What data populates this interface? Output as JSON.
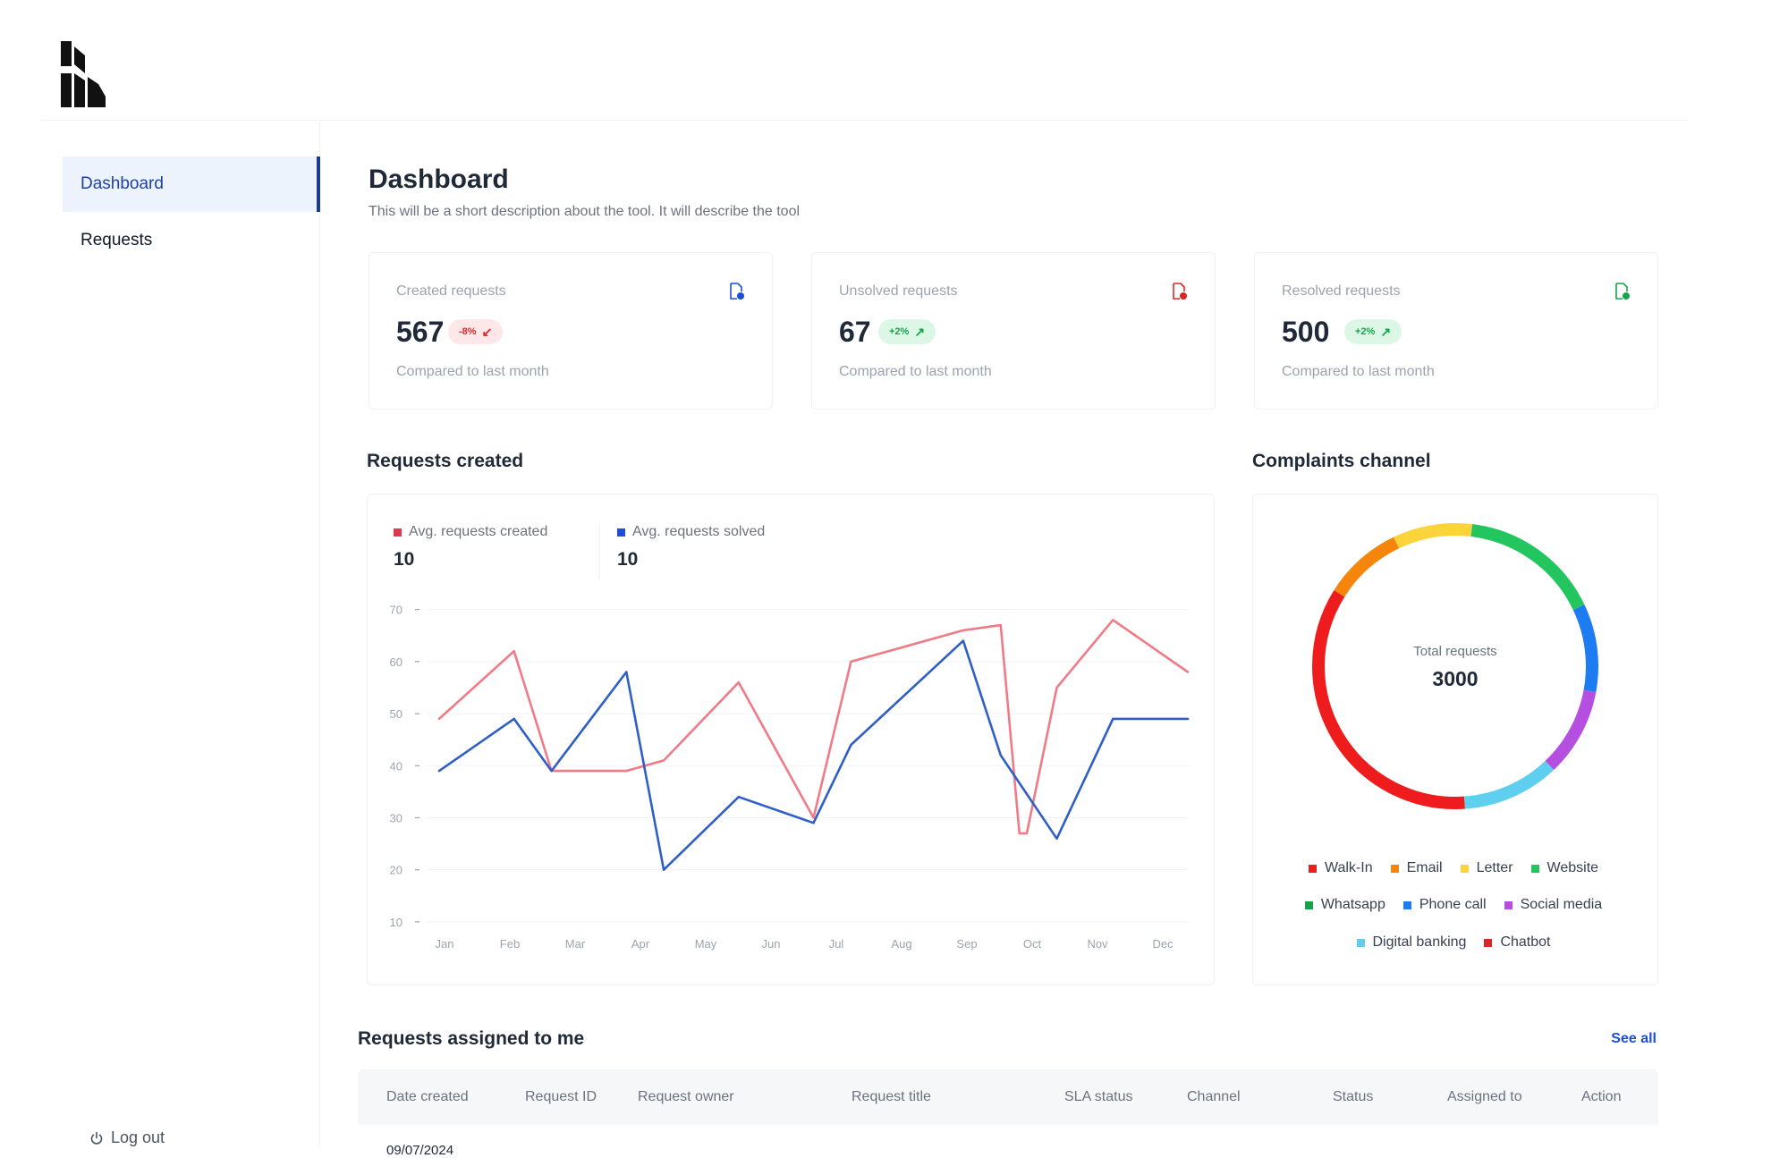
{
  "sidebar": {
    "items": [
      {
        "label": "Dashboard",
        "active": true
      },
      {
        "label": "Requests",
        "active": false
      }
    ],
    "logout_label": "Log out"
  },
  "header": {
    "title": "Dashboard",
    "description": "This will be a short description about the tool. It will describe the tool"
  },
  "stats": [
    {
      "label": "Created requests",
      "value": "567",
      "change": "-8%",
      "trend": "down",
      "footnote": "Compared to last month",
      "icon_color": "#1d4ed8"
    },
    {
      "label": "Unsolved requests",
      "value": "67",
      "change": "+2%",
      "trend": "up",
      "footnote": "Compared to last month",
      "icon_color": "#dc2626"
    },
    {
      "label": "Resolved requests",
      "value": "500",
      "change": "+2%",
      "trend": "up",
      "footnote": "Compared to last month",
      "icon_color": "#16a34a"
    }
  ],
  "requests_chart": {
    "title": "Requests created",
    "legend": [
      {
        "label": "Avg. requests created",
        "value": "10",
        "color": "#e2384d"
      },
      {
        "label": "Avg. requests solved",
        "value": "10",
        "color": "#1d4ed8"
      }
    ]
  },
  "complaints_chart": {
    "title": "Complaints channel",
    "center_label": "Total requests",
    "center_value": "3000"
  },
  "chart_data": [
    {
      "type": "line",
      "x": [
        "Jan",
        "Feb",
        "Mar",
        "Apr",
        "May",
        "Jun",
        "Jul",
        "Aug",
        "Sep",
        "Oct",
        "Nov",
        "Dec"
      ],
      "yticks": [
        10,
        20,
        30,
        40,
        50,
        60,
        70
      ],
      "ylim": [
        5,
        72
      ],
      "series": [
        {
          "name": "Avg. requests created",
          "color": "#f07b87",
          "points": [
            [
              0,
              49
            ],
            [
              1,
              62
            ],
            [
              1.5,
              39
            ],
            [
              2.5,
              39
            ],
            [
              3,
              41
            ],
            [
              4,
              56
            ],
            [
              5,
              30
            ],
            [
              5.5,
              60
            ],
            [
              7,
              66
            ],
            [
              7.5,
              67
            ],
            [
              7.75,
              27
            ],
            [
              7.85,
              27
            ],
            [
              8.25,
              55
            ],
            [
              9,
              68
            ],
            [
              10,
              58
            ]
          ]
        },
        {
          "name": "Avg. requests solved",
          "color": "#2f5fc6",
          "points": [
            [
              0,
              39
            ],
            [
              1,
              49
            ],
            [
              1.5,
              39
            ],
            [
              2.5,
              58
            ],
            [
              3,
              20
            ],
            [
              4,
              34
            ],
            [
              5,
              29
            ],
            [
              5.5,
              44
            ],
            [
              7,
              64
            ],
            [
              7.5,
              42
            ],
            [
              8.25,
              26
            ],
            [
              9,
              49
            ],
            [
              10,
              49
            ]
          ]
        }
      ],
      "grid": true
    },
    {
      "type": "pie",
      "style": "donut",
      "center_label": "Total requests",
      "center_value": "3000",
      "slices": [
        {
          "label": "Website",
          "value": 16,
          "color": "#22c55e"
        },
        {
          "label": "Phone call",
          "value": 10,
          "color": "#1d7cf2"
        },
        {
          "label": "Social media",
          "value": 10,
          "color": "#b44fe0"
        },
        {
          "label": "Digital banking",
          "value": 11,
          "color": "#5fcff0"
        },
        {
          "label": "Walk-In",
          "value": 35,
          "color": "#ee1c1c"
        },
        {
          "label": "Email",
          "value": 9,
          "color": "#f5860b"
        },
        {
          "label": "Letter",
          "value": 9,
          "color": "#fbd33b"
        }
      ],
      "legend": [
        {
          "label": "Walk-In",
          "color": "#ee1c1c"
        },
        {
          "label": "Email",
          "color": "#f5860b"
        },
        {
          "label": "Letter",
          "color": "#fbd33b"
        },
        {
          "label": "Website",
          "color": "#22c55e"
        },
        {
          "label": "Whatsapp",
          "color": "#16a34a"
        },
        {
          "label": "Phone call",
          "color": "#1d7cf2"
        },
        {
          "label": "Social media",
          "color": "#b44fe0"
        },
        {
          "label": "Digital banking",
          "color": "#5fcff0"
        },
        {
          "label": "Chatbot",
          "color": "#dc2626"
        }
      ]
    }
  ],
  "assigned": {
    "title": "Requests assigned to me",
    "see_all": "See all",
    "columns": [
      "Date created",
      "Request ID",
      "Request owner",
      "Request title",
      "SLA status",
      "Channel",
      "Status",
      "Assigned to",
      "Action"
    ],
    "rows": [
      {
        "date": "09/07/2024"
      }
    ]
  }
}
